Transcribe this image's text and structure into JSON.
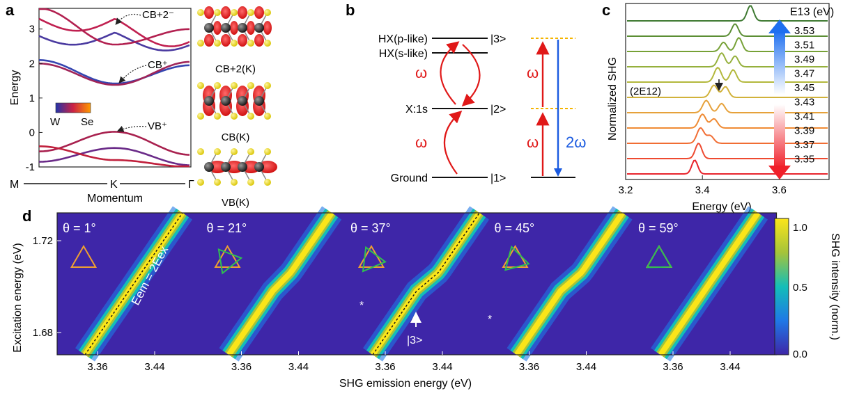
{
  "panel_a": {
    "label": "a",
    "ylabel": "Energy",
    "xaxis": {
      "left": "M",
      "center": "K",
      "right": "Γ",
      "label": "Momentum"
    },
    "yticks": [
      "3",
      "2",
      "1",
      "0",
      "-1"
    ],
    "annotations": [
      "CB+2⁻",
      "CB⁺",
      "VB⁺"
    ],
    "colorbar": {
      "low": "W",
      "high": "Se",
      "low_color": "#2233aa",
      "high_color": "#ff9900"
    },
    "orbitals": [
      "CB+2(K)",
      "CB(K)",
      "VB(K)"
    ]
  },
  "panel_b": {
    "label": "b",
    "levels": [
      "HX(p-like)",
      "HX(s-like)",
      "X:1s",
      "Ground"
    ],
    "kets": [
      "|3>",
      "|2>",
      "|1>"
    ],
    "omega": "ω",
    "two_omega": "2ω"
  },
  "panel_c": {
    "label": "c",
    "ylabel": "Normalized SHG",
    "xlabel": "Energy (eV)",
    "xticks": [
      "3.2",
      "3.4",
      "3.6"
    ],
    "legend_title": "E13 (eV)",
    "marker_label": "(2E12)",
    "e13_values": [
      "3.53",
      "3.51",
      "3.49",
      "3.47",
      "3.45",
      "3.43",
      "3.41",
      "3.39",
      "3.37",
      "3.35"
    ]
  },
  "panel_d": {
    "label": "d",
    "ylabel": "Excitation energy (eV)",
    "xlabel": "SHG emission energy (eV)",
    "yticks": [
      "1.72",
      "1.68"
    ],
    "xticks": [
      "3.36",
      "3.44"
    ],
    "colorbar_label": "SHG intensity (norm.)",
    "colorbar_ticks": [
      "1.0",
      "0.5",
      "0.0"
    ],
    "relation": "Eem = 2Eex",
    "state_label": "|3>",
    "star": "*",
    "angles": [
      "θ = 1°",
      "θ = 21°",
      "θ = 37°",
      "θ = 45°",
      "θ = 59°"
    ]
  },
  "chart_data": [
    {
      "type": "line",
      "title": "",
      "xlabel": "Momentum",
      "ylabel": "Energy",
      "x": [
        "M",
        "K",
        "Γ"
      ],
      "ylim": [
        -1,
        3.6
      ],
      "series": [
        {
          "name": "CB+2⁻",
          "values": [
            3.3,
            3.3,
            2.7
          ]
        },
        {
          "name": "CB⁺",
          "values": [
            2.1,
            1.4,
            2.0
          ]
        },
        {
          "name": "VB⁺",
          "values": [
            -0.6,
            0.0,
            -0.7
          ]
        }
      ]
    },
    {
      "type": "line",
      "title": "",
      "xlabel": "Energy (eV)",
      "ylabel": "Normalized SHG",
      "xlim": [
        3.2,
        3.75
      ],
      "series": [
        {
          "name": "3.53",
          "values": [
            3.52
          ]
        },
        {
          "name": "3.51",
          "values": [
            3.49
          ]
        },
        {
          "name": "3.49",
          "values": [
            3.47
          ]
        },
        {
          "name": "3.47",
          "values": [
            3.46
          ]
        },
        {
          "name": "3.45",
          "values": [
            3.44
          ]
        },
        {
          "name": "3.43",
          "values": [
            3.43
          ]
        },
        {
          "name": "3.41",
          "values": [
            3.41
          ]
        },
        {
          "name": "3.39",
          "values": [
            3.4
          ]
        },
        {
          "name": "3.37",
          "values": [
            3.39
          ]
        },
        {
          "name": "3.35",
          "values": [
            3.38
          ]
        }
      ]
    },
    {
      "type": "heatmap",
      "title": "",
      "xlabel": "SHG emission energy (eV)",
      "ylabel": "Excitation energy (eV)",
      "xlim": [
        3.3,
        3.5
      ],
      "ylim": [
        1.66,
        1.74
      ],
      "series": [
        {
          "name": "θ = 1°",
          "values": [
            3.35,
            3.47
          ]
        },
        {
          "name": "θ = 21°",
          "values": [
            3.36,
            3.47
          ]
        },
        {
          "name": "θ = 37°",
          "values": [
            3.36,
            3.47
          ]
        },
        {
          "name": "θ = 45°",
          "values": [
            3.36,
            3.47
          ]
        },
        {
          "name": "θ = 59°",
          "values": [
            3.36,
            3.47
          ]
        }
      ]
    }
  ]
}
